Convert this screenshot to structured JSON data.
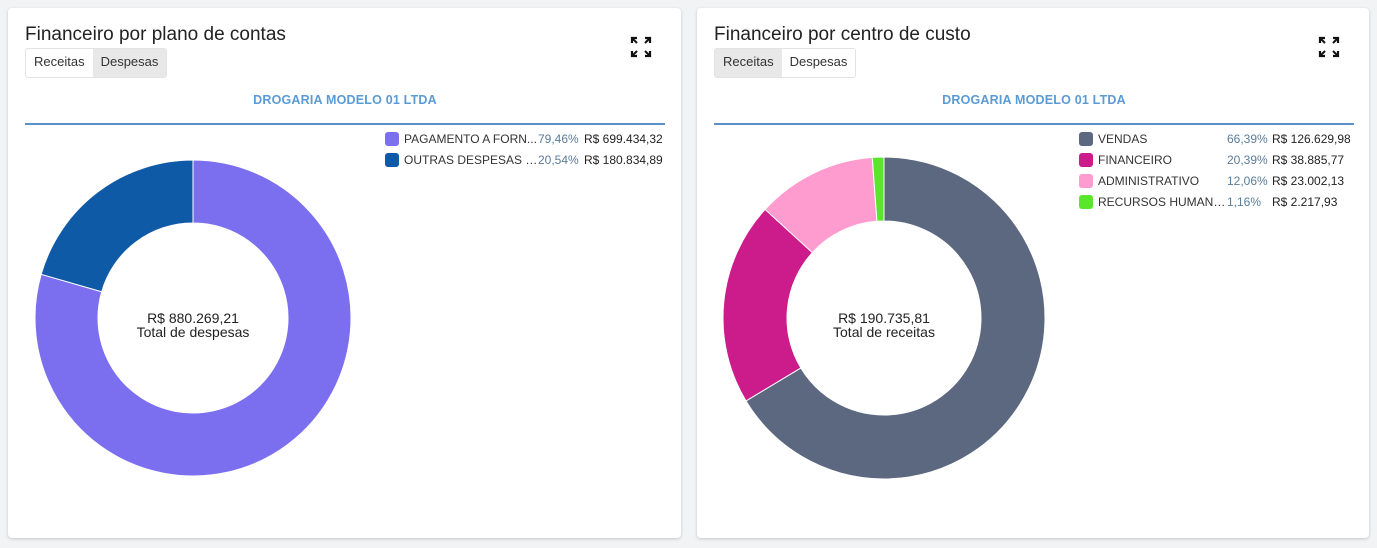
{
  "charts": [
    {
      "title": "Financeiro por plano de contas",
      "tabs": [
        "Receitas",
        "Despesas"
      ],
      "active_tab": "Despesas",
      "company": "DROGARIA MODELO 01 LTDA",
      "center_value": "R$ 880.269,21",
      "center_label": "Total de despesas",
      "legend": [
        {
          "label": "PAGAMENTO A FORN...",
          "pct": "79,46%",
          "value": "R$ 699.434,32"
        },
        {
          "label": "OUTRAS DESPESAS O...",
          "pct": "20,54%",
          "value": "R$ 180.834,89"
        }
      ]
    },
    {
      "title": "Financeiro por centro de custo",
      "tabs": [
        "Receitas",
        "Despesas"
      ],
      "active_tab": "Receitas",
      "company": "DROGARIA MODELO 01 LTDA",
      "center_value": "R$ 190.735,81",
      "center_label": "Total de receitas",
      "legend": [
        {
          "label": "VENDAS",
          "pct": "66,39%",
          "value": "R$ 126.629,98"
        },
        {
          "label": "FINANCEIRO",
          "pct": "20,39%",
          "value": "R$ 38.885,77"
        },
        {
          "label": "ADMINISTRATIVO",
          "pct": "12,06%",
          "value": "R$ 23.002,13"
        },
        {
          "label": "RECURSOS HUMANOS",
          "pct": "1,16%",
          "value": "R$ 2.217,93"
        }
      ]
    }
  ],
  "chart_data": [
    {
      "type": "pie",
      "variant": "donut",
      "title": "Financeiro por plano de contas",
      "categories": [
        "PAGAMENTO A FORN...",
        "OUTRAS DESPESAS O..."
      ],
      "values": [
        699434.32,
        180834.89
      ],
      "percentages": [
        79.46,
        20.54
      ],
      "colors": [
        "#7b6ff0",
        "#0f5aa6"
      ],
      "total": 880269.21,
      "legend_position": "top-right"
    },
    {
      "type": "pie",
      "variant": "donut",
      "title": "Financeiro por centro de custo",
      "categories": [
        "VENDAS",
        "FINANCEIRO",
        "ADMINISTRATIVO",
        "RECURSOS HUMANOS"
      ],
      "values": [
        126629.98,
        38885.77,
        23002.13,
        2217.93
      ],
      "percentages": [
        66.39,
        20.39,
        12.06,
        1.16
      ],
      "colors": [
        "#5b6880",
        "#cc1c8c",
        "#ff9ccf",
        "#5be62e"
      ],
      "total": 190735.81,
      "legend_position": "top-right"
    }
  ]
}
